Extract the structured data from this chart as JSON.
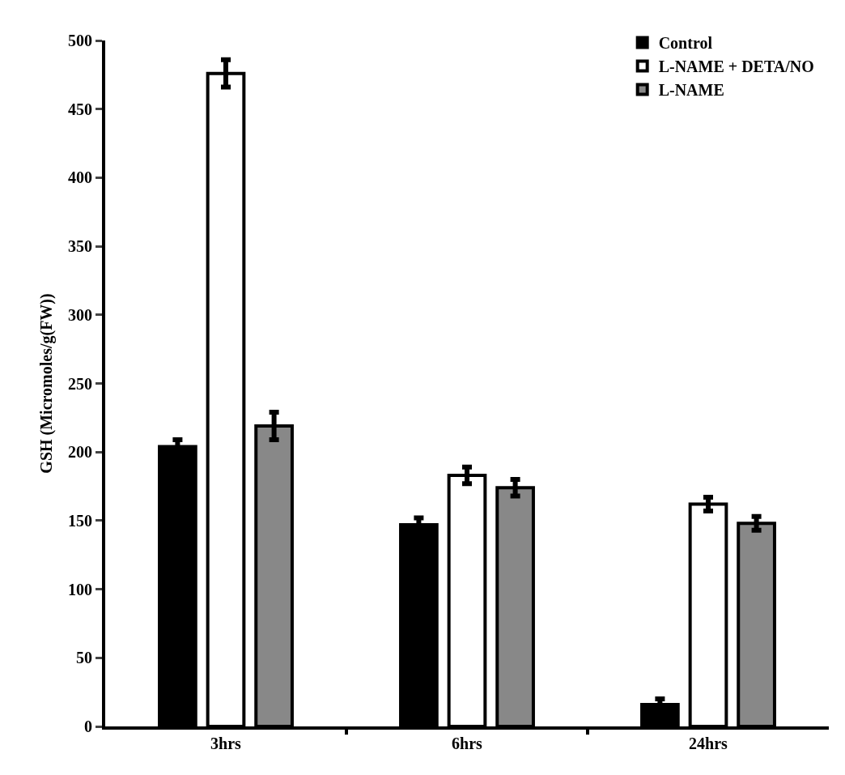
{
  "chart_data": {
    "type": "bar",
    "ylabel": "GSH (Micromoles/g(FW))",
    "categories": [
      "3hrs",
      "6hrs",
      "24hrs"
    ],
    "series": [
      {
        "name": "Control",
        "color": "#000000",
        "values": [
          204,
          147,
          16
        ],
        "errors": [
          5,
          5,
          4
        ]
      },
      {
        "name": "L-NAME + DETA/NO",
        "color": "#ffffff",
        "values": [
          476,
          183,
          162
        ],
        "errors": [
          10,
          6,
          5
        ]
      },
      {
        "name": "L-NAME",
        "color": "#888888",
        "values": [
          219,
          174,
          148
        ],
        "errors": [
          10,
          6,
          5
        ]
      }
    ],
    "ylim": [
      0,
      500
    ],
    "yticks": [
      0,
      50,
      100,
      150,
      200,
      250,
      300,
      350,
      400,
      450,
      500
    ],
    "legend": "top right"
  }
}
